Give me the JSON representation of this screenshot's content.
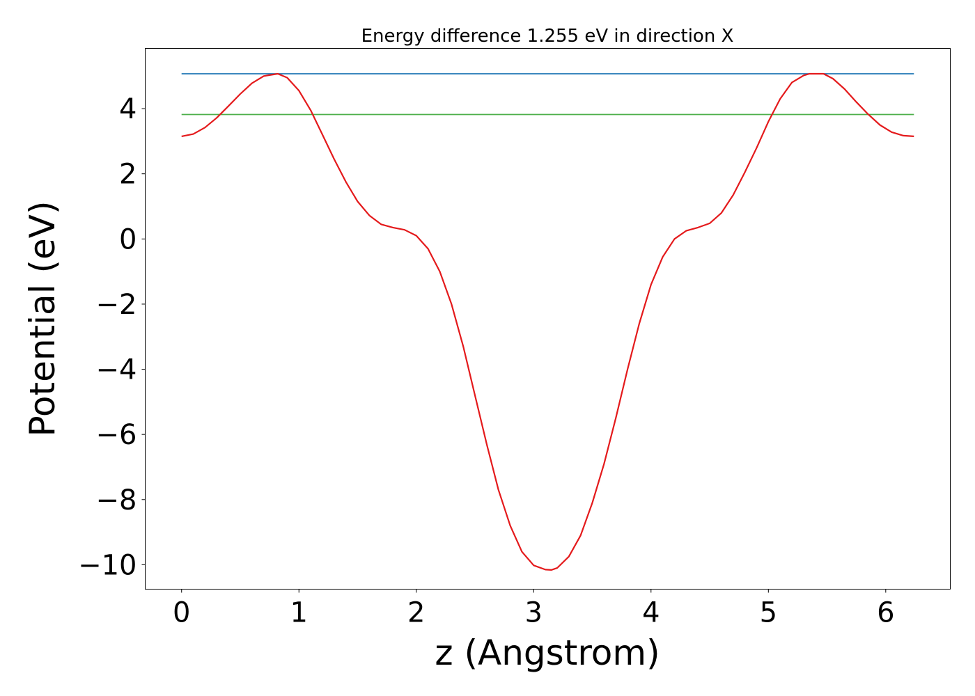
{
  "chart_data": {
    "type": "line",
    "title": "Energy difference 1.255 eV in direction X",
    "xlabel": "z (Angstrom)",
    "ylabel": "Potential (eV)",
    "xlim": [
      -0.31,
      6.55
    ],
    "ylim": [
      -10.75,
      5.85
    ],
    "x_ticks": [
      0,
      1,
      2,
      3,
      4,
      5,
      6
    ],
    "x_tick_labels": [
      "0",
      "1",
      "2",
      "3",
      "4",
      "5",
      "6"
    ],
    "y_ticks": [
      4,
      2,
      0,
      -2,
      -4,
      -6,
      -8,
      -10
    ],
    "y_tick_labels": [
      "4",
      "2",
      "0",
      "−2",
      "−4",
      "−6",
      "−8",
      "−10"
    ],
    "grid": false,
    "legend": "none",
    "series": [
      {
        "color": "#e41a1c",
        "x": [
          0,
          0.1,
          0.2,
          0.3,
          0.4,
          0.5,
          0.6,
          0.7,
          0.82,
          0.9,
          1.0,
          1.1,
          1.2,
          1.3,
          1.4,
          1.5,
          1.6,
          1.7,
          1.8,
          1.9,
          2.0,
          2.1,
          2.2,
          2.3,
          2.4,
          2.5,
          2.6,
          2.7,
          2.8,
          2.9,
          3.0,
          3.1,
          3.15,
          3.2,
          3.3,
          3.4,
          3.5,
          3.6,
          3.7,
          3.8,
          3.9,
          4.0,
          4.1,
          4.2,
          4.3,
          4.4,
          4.5,
          4.6,
          4.7,
          4.8,
          4.9,
          5.0,
          5.1,
          5.2,
          5.3,
          5.35,
          5.47,
          5.55,
          5.65,
          5.75,
          5.85,
          5.95,
          6.05,
          6.15,
          6.24
        ],
        "y": [
          3.15,
          3.22,
          3.42,
          3.72,
          4.08,
          4.45,
          4.78,
          5.0,
          5.07,
          4.95,
          4.55,
          3.95,
          3.2,
          2.45,
          1.75,
          1.15,
          0.72,
          0.45,
          0.35,
          0.28,
          0.1,
          -0.3,
          -1.0,
          -2.0,
          -3.3,
          -4.8,
          -6.3,
          -7.7,
          -8.8,
          -9.6,
          -10.02,
          -10.15,
          -10.16,
          -10.1,
          -9.75,
          -9.1,
          -8.1,
          -6.9,
          -5.5,
          -4.0,
          -2.6,
          -1.4,
          -0.55,
          0.0,
          0.25,
          0.35,
          0.48,
          0.8,
          1.35,
          2.05,
          2.8,
          3.6,
          4.3,
          4.8,
          5.02,
          5.07,
          5.07,
          4.92,
          4.6,
          4.2,
          3.83,
          3.5,
          3.28,
          3.17,
          3.15
        ]
      },
      {
        "color": "#1f77b4",
        "x": [
          0,
          6.24
        ],
        "y": [
          5.07,
          5.07
        ]
      },
      {
        "color": "#4daf4a",
        "x": [
          0,
          6.24
        ],
        "y": [
          3.82,
          3.82
        ]
      }
    ]
  }
}
